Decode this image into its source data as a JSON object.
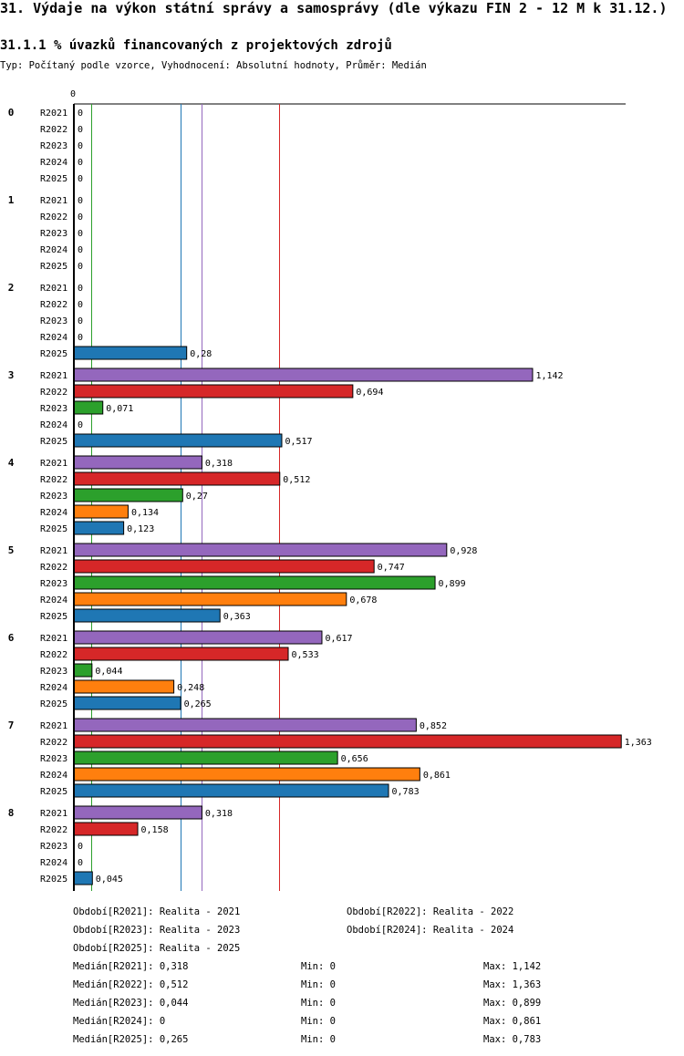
{
  "header": {
    "title": "31. Výdaje na výkon státní správy a samosprávy (dle výkazu FIN 2 - 12 M k 31.12.)",
    "subtitle": "31.1.1 % úvazků financovaných z projektových zdrojů",
    "typ": "Typ: Počítaný podle vzorce, Vyhodnocení: Absolutní hodnoty, Průměr: Medián"
  },
  "chart_data": {
    "type": "bar",
    "orientation": "horizontal",
    "axis_zero_label": "0",
    "xlim": [
      0,
      1.363
    ],
    "categories": [
      "0",
      "1",
      "2",
      "3",
      "4",
      "5",
      "6",
      "7",
      "8"
    ],
    "series": [
      {
        "name": "R2021",
        "color": "#9467bd",
        "values": [
          0,
          0,
          0,
          1.142,
          0.318,
          0.928,
          0.617,
          0.852,
          0.318
        ],
        "labels": [
          "0",
          "0",
          "0",
          "1,142",
          "0,318",
          "0,928",
          "0,617",
          "0,852",
          "0,318"
        ]
      },
      {
        "name": "R2022",
        "color": "#d62728",
        "values": [
          0,
          0,
          0,
          0.694,
          0.512,
          0.747,
          0.533,
          1.363,
          0.158
        ],
        "labels": [
          "0",
          "0",
          "0",
          "0,694",
          "0,512",
          "0,747",
          "0,533",
          "1,363",
          "0,158"
        ]
      },
      {
        "name": "R2023",
        "color": "#2ca02c",
        "values": [
          0,
          0,
          0,
          0.071,
          0.27,
          0.899,
          0.044,
          0.656,
          0
        ],
        "labels": [
          "0",
          "0",
          "0",
          "0,071",
          "0,27",
          "0,899",
          "0,044",
          "0,656",
          "0"
        ]
      },
      {
        "name": "R2024",
        "color": "#ff7f0e",
        "values": [
          0,
          0,
          0,
          0,
          0.134,
          0.678,
          0.248,
          0.861,
          0
        ],
        "labels": [
          "0",
          "0",
          "0",
          "0",
          "0,134",
          "0,678",
          "0,248",
          "0,861",
          "0"
        ]
      },
      {
        "name": "R2025",
        "color": "#1f77b4",
        "values": [
          0,
          0,
          0.28,
          0.517,
          0.123,
          0.363,
          0.265,
          0.783,
          0.045
        ],
        "labels": [
          "0",
          "0",
          "0,28",
          "0,517",
          "0,123",
          "0,363",
          "0,265",
          "0,783",
          "0,045"
        ]
      }
    ],
    "median_lines": [
      {
        "series": "R2021",
        "value": 0.318,
        "color": "#9467bd"
      },
      {
        "series": "R2022",
        "value": 0.512,
        "color": "#d62728"
      },
      {
        "series": "R2023",
        "value": 0.044,
        "color": "#2ca02c"
      },
      {
        "series": "R2025",
        "value": 0.265,
        "color": "#1f77b4"
      }
    ]
  },
  "legend": {
    "periods": [
      "Období[R2021]: Realita - 2021",
      "Období[R2022]: Realita - 2022",
      "Období[R2023]: Realita - 2023",
      "Období[R2024]: Realita - 2024",
      "Období[R2025]: Realita - 2025"
    ],
    "stats": [
      {
        "median": "Medián[R2021]: 0,318",
        "min": "Min: 0",
        "max": "Max: 1,142"
      },
      {
        "median": "Medián[R2022]: 0,512",
        "min": "Min: 0",
        "max": "Max: 1,363"
      },
      {
        "median": "Medián[R2023]: 0,044",
        "min": "Min: 0",
        "max": "Max: 0,899"
      },
      {
        "median": "Medián[R2024]: 0",
        "min": "Min: 0",
        "max": "Max: 0,861"
      },
      {
        "median": "Medián[R2025]: 0,265",
        "min": "Min: 0",
        "max": "Max: 0,783"
      }
    ]
  }
}
